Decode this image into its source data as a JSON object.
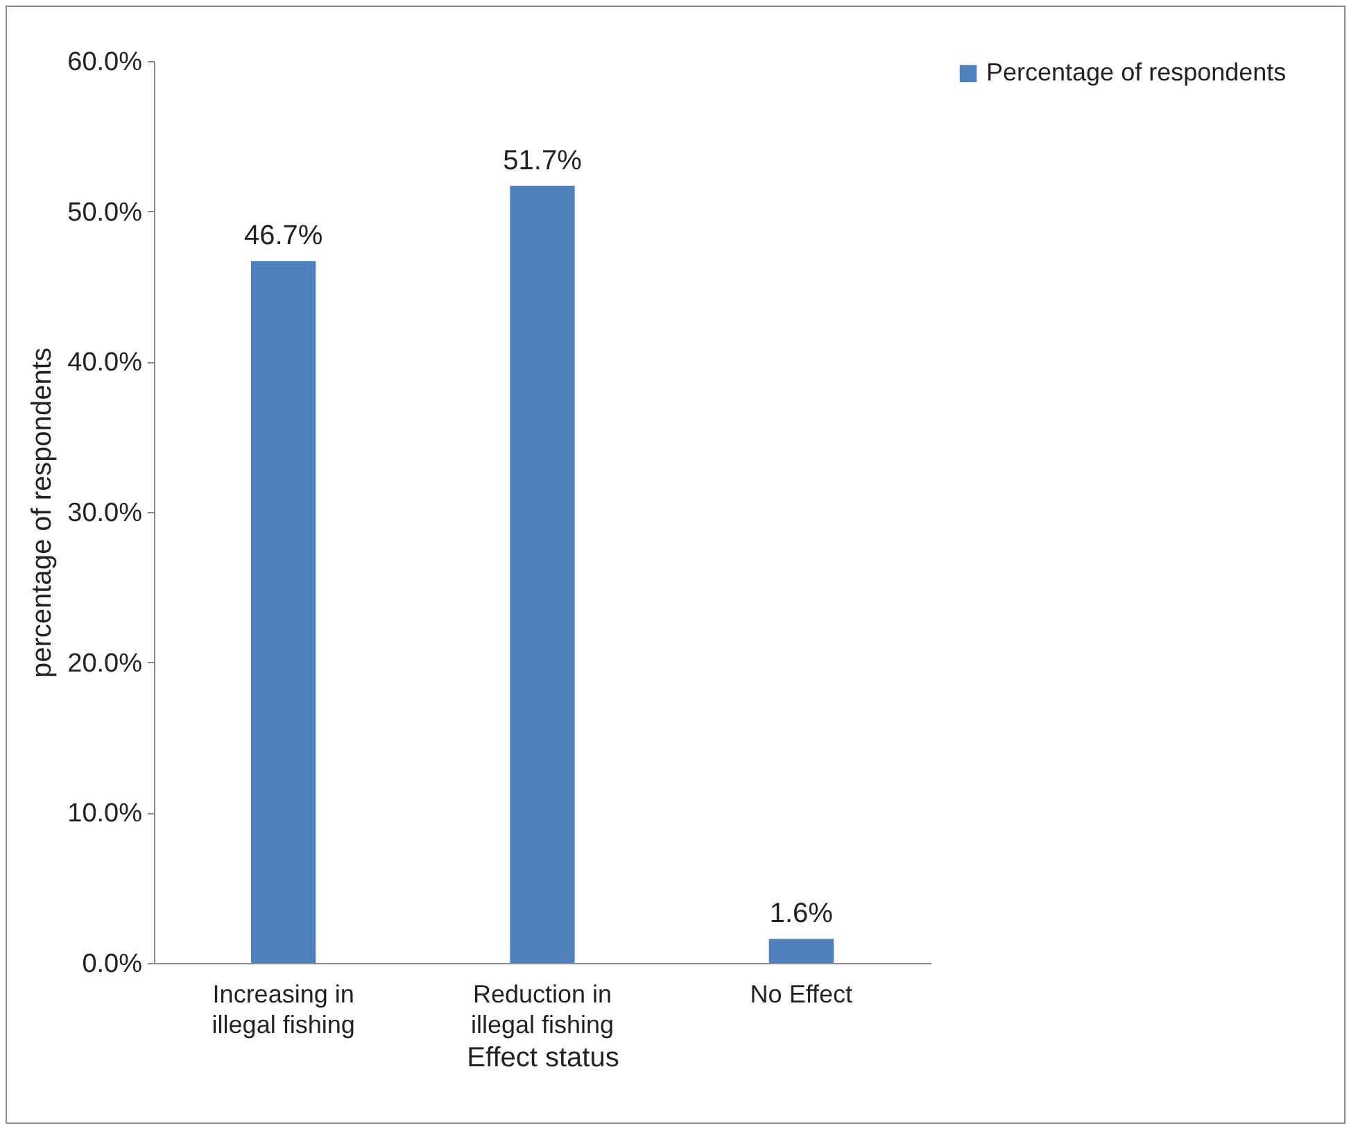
{
  "chart_data": {
    "type": "bar",
    "xlabel": "Effect status",
    "ylabel": "percentage of respondents",
    "categories": [
      "Increasing in illegal fishing",
      "Reduction in illegal fishing",
      "No Effect"
    ],
    "series": [
      {
        "name": "Percentage of respondents",
        "color": "#4f81bd",
        "values": [
          46.7,
          51.7,
          1.6
        ],
        "value_labels": [
          "46.7%",
          "51.7%",
          "1.6%"
        ]
      }
    ],
    "ylim": [
      0,
      60
    ],
    "yticks": [
      {
        "value": 0,
        "label": "0.0%"
      },
      {
        "value": 10,
        "label": "10.0%"
      },
      {
        "value": 20,
        "label": "20.0%"
      },
      {
        "value": 30,
        "label": "30.0%"
      },
      {
        "value": 40,
        "label": "40.0%"
      },
      {
        "value": 50,
        "label": "50.0%"
      },
      {
        "value": 60,
        "label": "60.0%"
      }
    ],
    "grid": false,
    "legend": "right"
  }
}
